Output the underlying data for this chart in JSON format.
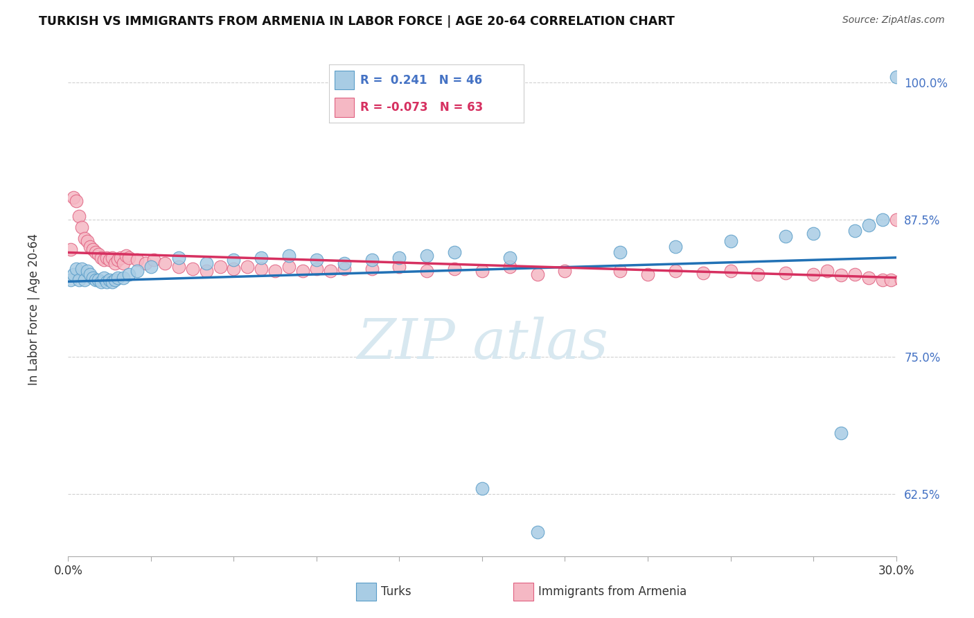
{
  "title": "TURKISH VS IMMIGRANTS FROM ARMENIA IN LABOR FORCE | AGE 20-64 CORRELATION CHART",
  "source": "Source: ZipAtlas.com",
  "ylabel": "In Labor Force | Age 20-64",
  "xlim": [
    0.0,
    0.3
  ],
  "ylim": [
    0.568,
    1.03
  ],
  "yticks": [
    0.625,
    0.75,
    0.875,
    1.0
  ],
  "yticklabels": [
    "62.5%",
    "75.0%",
    "87.5%",
    "100.0%"
  ],
  "blue_color": "#a8cce4",
  "pink_color": "#f5b8c4",
  "blue_edge_color": "#5a9dc8",
  "pink_edge_color": "#e06080",
  "blue_line_color": "#2171b5",
  "pink_line_color": "#d63060",
  "ytick_color": "#4472c4",
  "legend_text_blue": "#4472c4",
  "legend_text_pink": "#d63060",
  "turks_x": [
    0.001,
    0.002,
    0.003,
    0.004,
    0.005,
    0.006,
    0.007,
    0.008,
    0.009,
    0.01,
    0.011,
    0.012,
    0.013,
    0.014,
    0.015,
    0.016,
    0.017,
    0.018,
    0.02,
    0.022,
    0.025,
    0.03,
    0.04,
    0.05,
    0.06,
    0.07,
    0.08,
    0.09,
    0.1,
    0.11,
    0.12,
    0.13,
    0.14,
    0.15,
    0.16,
    0.17,
    0.2,
    0.22,
    0.24,
    0.26,
    0.27,
    0.28,
    0.285,
    0.29,
    0.295,
    0.3
  ],
  "turks_y": [
    0.82,
    0.825,
    0.83,
    0.82,
    0.83,
    0.82,
    0.828,
    0.825,
    0.822,
    0.82,
    0.82,
    0.818,
    0.822,
    0.818,
    0.82,
    0.818,
    0.82,
    0.822,
    0.822,
    0.825,
    0.828,
    0.832,
    0.84,
    0.835,
    0.838,
    0.84,
    0.842,
    0.838,
    0.835,
    0.838,
    0.84,
    0.842,
    0.845,
    0.63,
    0.84,
    0.59,
    0.845,
    0.85,
    0.855,
    0.86,
    0.862,
    0.68,
    0.865,
    0.87,
    0.875,
    1.005
  ],
  "armenia_x": [
    0.001,
    0.002,
    0.003,
    0.004,
    0.005,
    0.006,
    0.007,
    0.008,
    0.009,
    0.01,
    0.011,
    0.012,
    0.013,
    0.014,
    0.015,
    0.016,
    0.017,
    0.018,
    0.019,
    0.02,
    0.021,
    0.022,
    0.025,
    0.028,
    0.031,
    0.035,
    0.04,
    0.045,
    0.05,
    0.055,
    0.06,
    0.065,
    0.07,
    0.075,
    0.08,
    0.085,
    0.09,
    0.095,
    0.1,
    0.11,
    0.12,
    0.13,
    0.14,
    0.15,
    0.16,
    0.17,
    0.18,
    0.2,
    0.21,
    0.22,
    0.23,
    0.24,
    0.25,
    0.26,
    0.27,
    0.275,
    0.28,
    0.285,
    0.29,
    0.295,
    0.298,
    0.3,
    0.302
  ],
  "armenia_y": [
    0.848,
    0.895,
    0.892,
    0.878,
    0.868,
    0.858,
    0.855,
    0.85,
    0.848,
    0.845,
    0.843,
    0.84,
    0.838,
    0.84,
    0.838,
    0.84,
    0.835,
    0.838,
    0.84,
    0.835,
    0.842,
    0.84,
    0.838,
    0.835,
    0.838,
    0.835,
    0.832,
    0.83,
    0.828,
    0.832,
    0.83,
    0.832,
    0.83,
    0.828,
    0.832,
    0.828,
    0.83,
    0.828,
    0.83,
    0.83,
    0.832,
    0.828,
    0.83,
    0.828,
    0.832,
    0.825,
    0.828,
    0.828,
    0.825,
    0.828,
    0.826,
    0.828,
    0.825,
    0.826,
    0.825,
    0.828,
    0.824,
    0.825,
    0.822,
    0.82,
    0.82,
    0.875,
    0.82
  ],
  "background_color": "#ffffff",
  "grid_color": "#d0d0d0",
  "watermark_color": "#d8e8f0"
}
